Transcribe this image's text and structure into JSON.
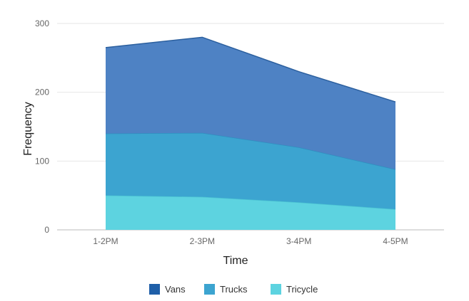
{
  "chart_data": {
    "type": "area",
    "stacked": true,
    "categories": [
      "1-2PM",
      "2-3PM",
      "3-4PM",
      "4-5PM"
    ],
    "xlabel": "Time",
    "ylabel": "Frequency",
    "ylim": [
      0,
      300
    ],
    "yticks": [
      0,
      100,
      200,
      300
    ],
    "grid": true,
    "legend_position": "bottom",
    "series": [
      {
        "name": "Tricycle",
        "values": [
          50,
          48,
          40,
          30
        ],
        "color": "#5dd3e0",
        "line_color": "#4bc3d2"
      },
      {
        "name": "Trucks",
        "values": [
          90,
          93,
          80,
          58
        ],
        "color": "#3ca4d0",
        "line_color": "#2f8fc0"
      },
      {
        "name": "Vans",
        "values": [
          125,
          139,
          110,
          98
        ],
        "color": "#4e82c4",
        "line_color": "#2b5f9e"
      }
    ],
    "legend_order": [
      "Vans",
      "Trucks",
      "Tricycle"
    ],
    "legend_colors": {
      "Vans": "#1f5fa8",
      "Trucks": "#3ca4d0",
      "Tricycle": "#5dd3e0"
    }
  }
}
